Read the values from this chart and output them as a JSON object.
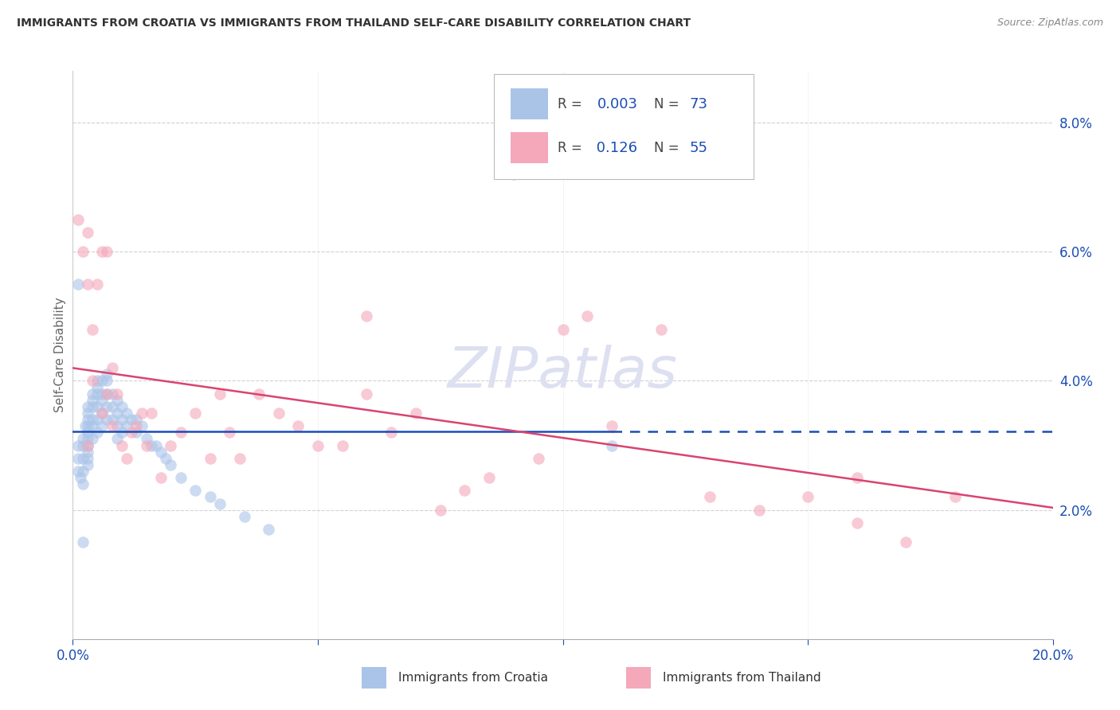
{
  "title": "IMMIGRANTS FROM CROATIA VS IMMIGRANTS FROM THAILAND SELF-CARE DISABILITY CORRELATION CHART",
  "source": "Source: ZipAtlas.com",
  "ylabel": "Self-Care Disability",
  "xlim": [
    0.0,
    0.2
  ],
  "ylim": [
    0.0,
    0.088
  ],
  "croatia_color": "#aac4e8",
  "thailand_color": "#f4a8ba",
  "croatia_line_color": "#1a4db5",
  "thailand_line_color": "#d94470",
  "legend_color": "#1a4db5",
  "grid_color": "#d0d0d8",
  "axis_tick_color": "#1a4db5",
  "watermark_color": "#dde0f0",
  "croatia_x": [
    0.001,
    0.001,
    0.001,
    0.0015,
    0.002,
    0.002,
    0.002,
    0.002,
    0.002,
    0.0025,
    0.003,
    0.003,
    0.003,
    0.003,
    0.003,
    0.003,
    0.003,
    0.003,
    0.003,
    0.003,
    0.004,
    0.004,
    0.004,
    0.004,
    0.004,
    0.004,
    0.005,
    0.005,
    0.005,
    0.005,
    0.005,
    0.005,
    0.006,
    0.006,
    0.006,
    0.006,
    0.006,
    0.007,
    0.007,
    0.007,
    0.007,
    0.007,
    0.008,
    0.008,
    0.008,
    0.009,
    0.009,
    0.009,
    0.009,
    0.01,
    0.01,
    0.01,
    0.011,
    0.011,
    0.012,
    0.013,
    0.013,
    0.014,
    0.015,
    0.016,
    0.017,
    0.018,
    0.019,
    0.02,
    0.022,
    0.025,
    0.028,
    0.03,
    0.035,
    0.04,
    0.001,
    0.002,
    0.11
  ],
  "croatia_y": [
    0.03,
    0.028,
    0.026,
    0.025,
    0.031,
    0.03,
    0.028,
    0.026,
    0.024,
    0.033,
    0.036,
    0.035,
    0.034,
    0.033,
    0.032,
    0.031,
    0.03,
    0.029,
    0.028,
    0.027,
    0.038,
    0.037,
    0.036,
    0.034,
    0.033,
    0.031,
    0.04,
    0.039,
    0.038,
    0.036,
    0.034,
    0.032,
    0.04,
    0.038,
    0.037,
    0.035,
    0.033,
    0.041,
    0.04,
    0.038,
    0.036,
    0.034,
    0.038,
    0.036,
    0.034,
    0.037,
    0.035,
    0.033,
    0.031,
    0.036,
    0.034,
    0.032,
    0.035,
    0.033,
    0.034,
    0.034,
    0.032,
    0.033,
    0.031,
    0.03,
    0.03,
    0.029,
    0.028,
    0.027,
    0.025,
    0.023,
    0.022,
    0.021,
    0.019,
    0.017,
    0.055,
    0.015,
    0.03
  ],
  "thailand_x": [
    0.001,
    0.002,
    0.003,
    0.003,
    0.004,
    0.004,
    0.005,
    0.006,
    0.007,
    0.007,
    0.008,
    0.009,
    0.01,
    0.011,
    0.012,
    0.013,
    0.014,
    0.015,
    0.016,
    0.018,
    0.02,
    0.022,
    0.025,
    0.028,
    0.03,
    0.032,
    0.034,
    0.038,
    0.042,
    0.046,
    0.05,
    0.055,
    0.06,
    0.065,
    0.07,
    0.075,
    0.08,
    0.085,
    0.09,
    0.095,
    0.1,
    0.105,
    0.11,
    0.12,
    0.13,
    0.14,
    0.15,
    0.16,
    0.17,
    0.18,
    0.003,
    0.006,
    0.008,
    0.06,
    0.16
  ],
  "thailand_y": [
    0.065,
    0.06,
    0.063,
    0.055,
    0.048,
    0.04,
    0.055,
    0.035,
    0.06,
    0.038,
    0.033,
    0.038,
    0.03,
    0.028,
    0.032,
    0.033,
    0.035,
    0.03,
    0.035,
    0.025,
    0.03,
    0.032,
    0.035,
    0.028,
    0.038,
    0.032,
    0.028,
    0.038,
    0.035,
    0.033,
    0.03,
    0.03,
    0.038,
    0.032,
    0.035,
    0.02,
    0.023,
    0.025,
    0.072,
    0.028,
    0.048,
    0.05,
    0.033,
    0.048,
    0.022,
    0.02,
    0.022,
    0.018,
    0.015,
    0.022,
    0.03,
    0.06,
    0.042,
    0.05,
    0.025
  ]
}
